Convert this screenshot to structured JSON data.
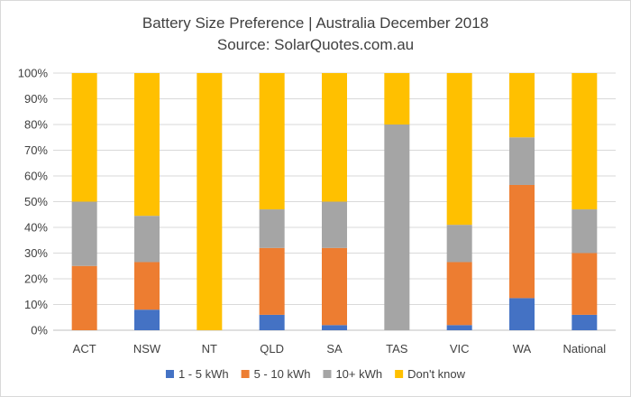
{
  "chart_data": {
    "type": "bar",
    "stacked": true,
    "title": "Battery Size Preference  | Australia December 2018",
    "subtitle": "Source: SolarQuotes.com.au",
    "xlabel": "",
    "ylabel": "",
    "ylim": [
      0,
      100
    ],
    "y_ticks": [
      "0%",
      "10%",
      "20%",
      "30%",
      "40%",
      "50%",
      "60%",
      "70%",
      "80%",
      "90%",
      "100%"
    ],
    "grid": true,
    "legend_position": "bottom",
    "categories": [
      "ACT",
      "NSW",
      "NT",
      "QLD",
      "SA",
      "TAS",
      "VIC",
      "WA",
      "National"
    ],
    "series": [
      {
        "name": "1 - 5 kWh",
        "color": "#4472c4",
        "values": [
          0,
          8,
          0,
          6,
          2,
          0,
          2,
          12.5,
          6
        ]
      },
      {
        "name": "5 - 10 kWh",
        "color": "#ed7d31",
        "values": [
          25,
          18.5,
          0,
          26,
          30,
          0,
          24.5,
          44,
          24
        ]
      },
      {
        "name": "10+ kWh",
        "color": "#a5a5a5",
        "values": [
          25,
          18,
          0,
          15,
          18,
          80,
          14.5,
          18.5,
          17
        ]
      },
      {
        "name": "Don't know",
        "color": "#ffc000",
        "values": [
          50,
          55.5,
          100,
          53,
          50,
          20,
          59,
          25,
          53
        ]
      }
    ]
  }
}
